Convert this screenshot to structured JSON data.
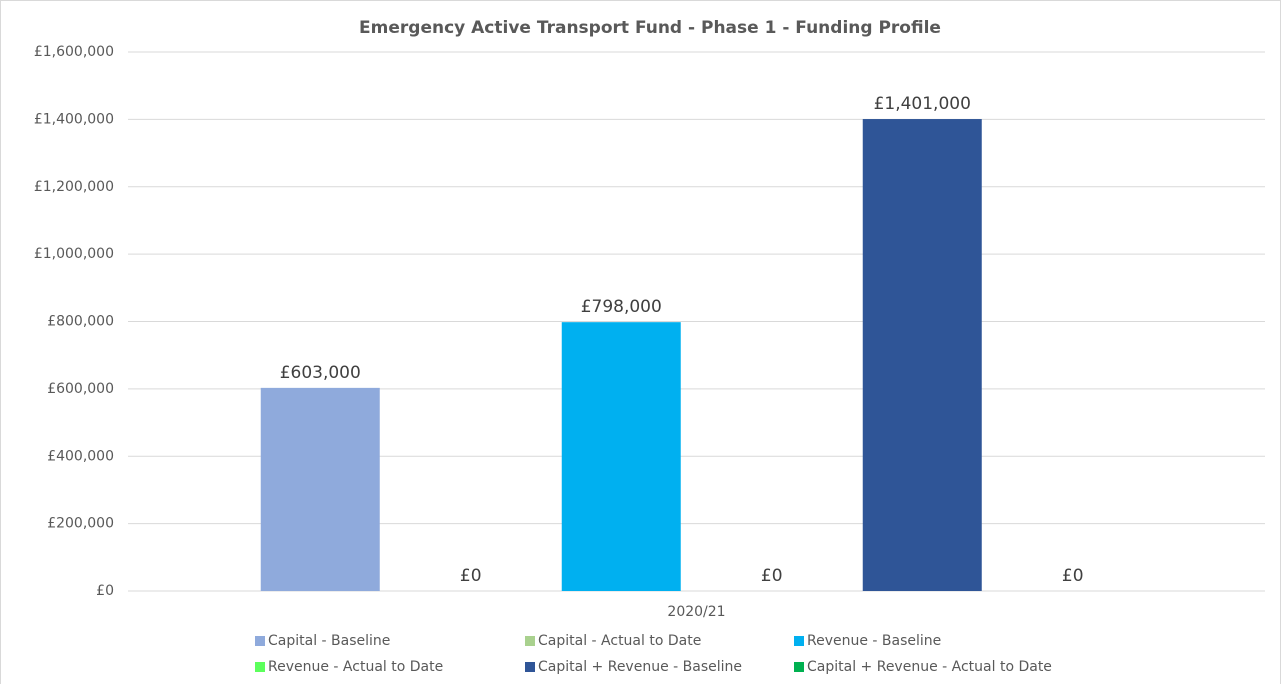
{
  "chart_data": {
    "type": "bar",
    "title": "Emergency Active Transport Fund - Phase 1 - Funding Profile",
    "categories": [
      "2020/21"
    ],
    "series": [
      {
        "name": "Capital - Baseline",
        "color": "#8faadc",
        "values": [
          603000
        ],
        "value_labels": [
          "£603,000"
        ]
      },
      {
        "name": "Capital - Actual to Date",
        "color": "#a9d18e",
        "values": [
          0
        ],
        "value_labels": [
          "£0"
        ]
      },
      {
        "name": "Revenue - Baseline",
        "color": "#00b0f0",
        "values": [
          798000
        ],
        "value_labels": [
          "£798,000"
        ]
      },
      {
        "name": "Revenue - Actual to Date",
        "color": "#5cff5c",
        "values": [
          0
        ],
        "value_labels": [
          "£0"
        ]
      },
      {
        "name": "Capital + Revenue - Baseline",
        "color": "#2f5597",
        "values": [
          1401000
        ],
        "value_labels": [
          "£1,401,000"
        ]
      },
      {
        "name": "Capital + Revenue - Actual to Date",
        "color": "#00b050",
        "values": [
          0
        ],
        "value_labels": [
          "£0"
        ]
      }
    ],
    "ylim": [
      0,
      1600000
    ],
    "yticks": [
      {
        "value": 0,
        "label": "£0"
      },
      {
        "value": 200000,
        "label": "£200,000"
      },
      {
        "value": 400000,
        "label": "£400,000"
      },
      {
        "value": 600000,
        "label": "£600,000"
      },
      {
        "value": 800000,
        "label": "£800,000"
      },
      {
        "value": 1000000,
        "label": "£1,000,000"
      },
      {
        "value": 1200000,
        "label": "£1,200,000"
      },
      {
        "value": 1400000,
        "label": "£1,400,000"
      },
      {
        "value": 1600000,
        "label": "£1,600,000"
      }
    ],
    "grid": true,
    "legend": "bottom"
  }
}
